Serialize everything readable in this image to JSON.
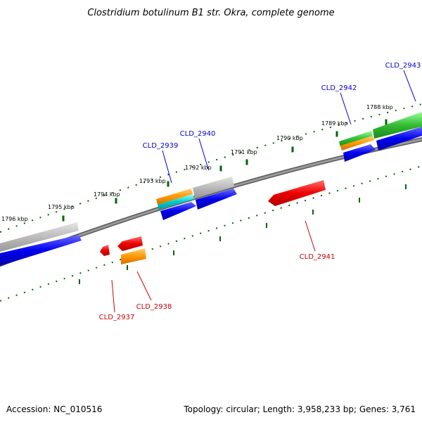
{
  "title": "Clostridium botulinum B1 str. Okra, complete genome",
  "footer": {
    "accession": "Accession: NC_010516",
    "summary": "Topology: circular; Length: 3,958,233 bp; Genes: 3,761"
  },
  "scale_labels": [
    "1796 kbp",
    "1795 kbp",
    "1794 kbp",
    "1793 kbp",
    "1792 kbp",
    "1791 kbp",
    "1790 kbp",
    "1789 kbp",
    "1788 kbp"
  ],
  "gene_labels": {
    "forward": [
      "CLD_2939",
      "CLD_2940",
      "CLD_2942",
      "CLD_2943"
    ],
    "reverse": [
      "CLD_2937",
      "CLD_2938",
      "CLD_2941"
    ]
  },
  "colors": {
    "forward_label": "#0000cc",
    "reverse_label": "#cc0000",
    "cds": "#0000ee",
    "gene": "#b4b4b4",
    "reverse_cds": "#ee0000",
    "orange": "#ff9900",
    "cyan": "#00cccc",
    "green": "#33bb33",
    "backbone": "#808080",
    "tick": "#006600"
  }
}
